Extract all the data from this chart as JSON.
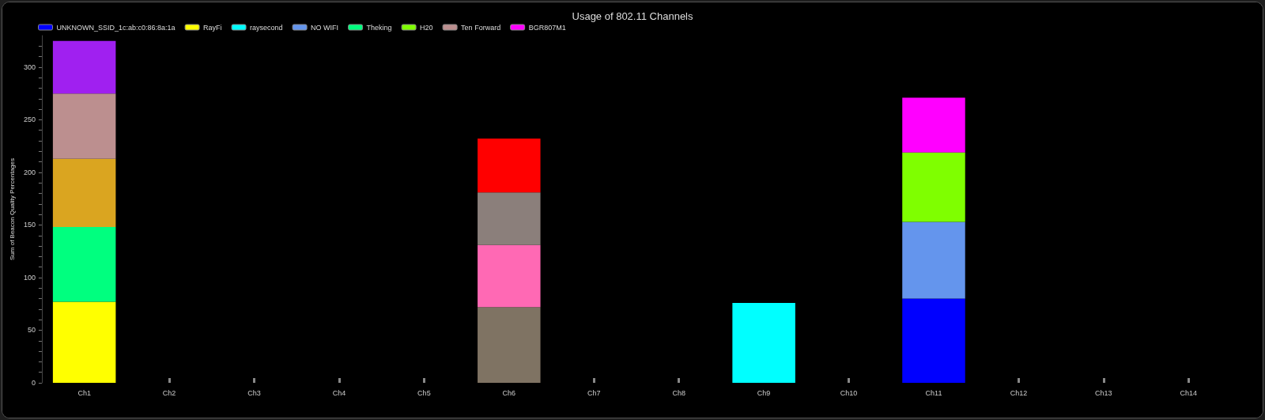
{
  "chart_data": {
    "type": "bar",
    "stacked": true,
    "title": "Usage of 802.11 Channels",
    "ylabel": "Sum of Beacon Quality Percentages",
    "legend": "top",
    "grid": false,
    "categories": [
      "Ch1",
      "Ch2",
      "Ch3",
      "Ch4",
      "Ch5",
      "Ch6",
      "Ch7",
      "Ch8",
      "Ch9",
      "Ch10",
      "Ch11",
      "Ch12",
      "Ch13",
      "Ch14"
    ],
    "ylim": [
      0,
      330
    ],
    "yticks": [
      0,
      {
        "value": 10,
        "label": null
      },
      {
        "value": 20,
        "label": null
      },
      {
        "value": 30,
        "label": null
      },
      {
        "value": 40,
        "label": null
      },
      50,
      {
        "value": 60,
        "label": null
      },
      {
        "value": 70,
        "label": null
      },
      {
        "value": 80,
        "label": null
      },
      {
        "value": 90,
        "label": null
      },
      100,
      {
        "value": 110,
        "label": null
      },
      {
        "value": 120,
        "label": null
      },
      {
        "value": 130,
        "label": null
      },
      {
        "value": 140,
        "label": null
      },
      150,
      {
        "value": 160,
        "label": null
      },
      {
        "value": 170,
        "label": null
      },
      {
        "value": 180,
        "label": null
      },
      {
        "value": 190,
        "label": null
      },
      200,
      {
        "value": 210,
        "label": null
      },
      {
        "value": 220,
        "label": null
      },
      {
        "value": 230,
        "label": null
      },
      {
        "value": 240,
        "label": null
      },
      250,
      {
        "value": 260,
        "label": null
      },
      {
        "value": 270,
        "label": null
      },
      {
        "value": 280,
        "label": null
      },
      {
        "value": 290,
        "label": null
      },
      300,
      {
        "value": 310,
        "label": null
      },
      {
        "value": 320,
        "label": null
      }
    ],
    "series": [
      {
        "name": "UNKNOWN_SSID_1c:ab:c0:86:8a:1a",
        "color": "#0000ff",
        "values": [
          null,
          null,
          null,
          null,
          null,
          null,
          null,
          null,
          null,
          null,
          80,
          null,
          null,
          null
        ]
      },
      {
        "name": "RayFi",
        "color": "#ffff00",
        "values": [
          77,
          null,
          null,
          null,
          null,
          null,
          null,
          null,
          null,
          null,
          null,
          null,
          null,
          null
        ]
      },
      {
        "name": "raysecond",
        "color": "#00ffff",
        "values": [
          null,
          null,
          null,
          null,
          null,
          null,
          null,
          null,
          76,
          null,
          null,
          null,
          null,
          null
        ]
      },
      {
        "color": "#7f7363",
        "values": [
          null,
          null,
          null,
          null,
          null,
          72,
          null,
          null,
          null,
          null,
          null,
          null,
          null,
          null
        ]
      },
      {
        "name": "NO WIFI",
        "color": "#6495ed",
        "values": [
          null,
          null,
          null,
          null,
          null,
          null,
          null,
          null,
          null,
          null,
          73,
          null,
          null,
          null
        ]
      },
      {
        "name": "Theking",
        "color": "#00ff7f",
        "values": [
          71,
          null,
          null,
          null,
          null,
          null,
          null,
          null,
          null,
          null,
          null,
          null,
          null,
          null
        ]
      },
      {
        "name": "H20",
        "color": "#7fff00",
        "values": [
          null,
          null,
          null,
          null,
          null,
          null,
          null,
          null,
          null,
          null,
          66,
          null,
          null,
          null
        ]
      },
      {
        "color": "#daa520",
        "values": [
          65,
          null,
          null,
          null,
          null,
          null,
          null,
          null,
          null,
          null,
          null,
          null,
          null,
          null
        ]
      },
      {
        "name": "Ten Forward",
        "color": "#bc8f8f",
        "values": [
          62,
          null,
          null,
          null,
          null,
          null,
          null,
          null,
          null,
          null,
          null,
          null,
          null,
          null
        ]
      },
      {
        "color": "#ff69b4",
        "values": [
          null,
          null,
          null,
          null,
          null,
          59,
          null,
          null,
          null,
          null,
          null,
          null,
          null,
          null
        ]
      },
      {
        "name": "BGR807M1",
        "color": "#ff00ff",
        "values": [
          null,
          null,
          null,
          null,
          null,
          null,
          null,
          null,
          null,
          null,
          52,
          null,
          null,
          null
        ]
      },
      {
        "color": "#a020f0",
        "values": [
          50,
          null,
          null,
          null,
          null,
          null,
          null,
          null,
          null,
          null,
          null,
          null,
          null,
          null
        ]
      },
      {
        "color": "#8b7f7b",
        "values": [
          null,
          null,
          null,
          null,
          null,
          50,
          null,
          null,
          null,
          null,
          null,
          null,
          null,
          null
        ]
      },
      {
        "color": "#ff0000",
        "values": [
          null,
          null,
          null,
          null,
          null,
          51,
          null,
          null,
          null,
          null,
          null,
          null,
          null,
          null
        ]
      }
    ]
  }
}
